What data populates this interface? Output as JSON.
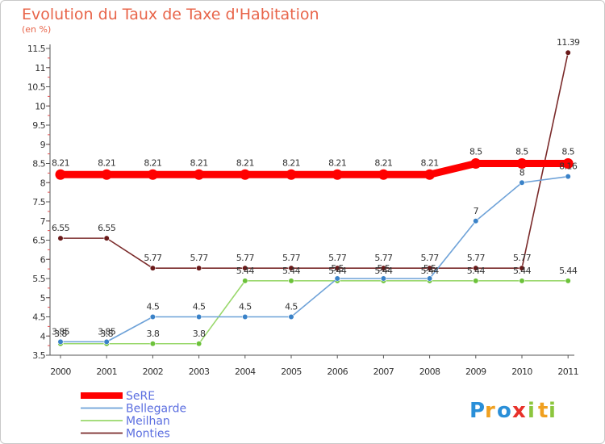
{
  "chart_data": {
    "type": "line",
    "title": "Evolution du Taux de Taxe d'Habitation",
    "ylabel": "(en %)",
    "xlabel": "",
    "x": [
      "2000",
      "2001",
      "2002",
      "2003",
      "2004",
      "2005",
      "2006",
      "2007",
      "2008",
      "2009",
      "2010",
      "2011"
    ],
    "yticks": [
      "3.5",
      "4",
      "4.5",
      "5",
      "5.5",
      "6",
      "6.5",
      "7",
      "7.5",
      "8",
      "8.5",
      "9",
      "9.5",
      "10",
      "10.5",
      "11",
      "11.5"
    ],
    "ylim": [
      3.5,
      11.5
    ],
    "grid": false,
    "legend_position": "bottom-left",
    "series": [
      {
        "name": "SeRE",
        "color": "#ff0000",
        "values": [
          8.21,
          8.21,
          8.21,
          8.21,
          8.21,
          8.21,
          8.21,
          8.21,
          8.21,
          8.5,
          8.5,
          8.5
        ],
        "labels": [
          "8.21",
          "8.21",
          "8.21",
          "8.21",
          "8.21",
          "8.21",
          "8.21",
          "8.21",
          "8.21",
          "8.5",
          "8.5",
          "8.5"
        ]
      },
      {
        "name": "Bellegarde",
        "color": "#6ea2d8",
        "marker": "#3a82c8",
        "values": [
          3.85,
          3.85,
          4.5,
          4.5,
          4.5,
          4.5,
          5.5,
          5.5,
          5.5,
          7,
          8,
          8.16
        ],
        "labels": [
          "3.85",
          "3.85",
          "4.5",
          "4.5",
          "4.5",
          "4.5",
          "5.5",
          "5.5",
          "5.5",
          "7",
          "8",
          "8.16"
        ]
      },
      {
        "name": "Meilhan",
        "color": "#9ad86c",
        "marker": "#6cc23a",
        "values": [
          3.8,
          3.8,
          3.8,
          3.8,
          5.44,
          5.44,
          5.44,
          5.44,
          5.44,
          5.44,
          5.44,
          5.44
        ],
        "labels": [
          "3.8",
          "3.8",
          "3.8",
          "3.8",
          "5.44",
          "5.44",
          "5.44",
          "5.44",
          "5.44",
          "5.44",
          "5.44",
          "5.44"
        ]
      },
      {
        "name": "Monties",
        "color": "#7a2a2a",
        "marker": "#6a1a1a",
        "values": [
          6.55,
          6.55,
          5.77,
          5.77,
          5.77,
          5.77,
          5.77,
          5.77,
          5.77,
          5.77,
          5.77,
          11.39
        ],
        "labels": [
          "6.55",
          "6.55",
          "5.77",
          "5.77",
          "5.77",
          "5.77",
          "5.77",
          "5.77",
          "5.77",
          "5.77",
          "5.77",
          "11.39"
        ]
      }
    ]
  },
  "brand": {
    "letters": [
      "P",
      "r",
      "o",
      "x",
      "i",
      "t",
      "i"
    ],
    "colors": [
      "#2a8fd8",
      "#f0a020",
      "#2a8fd8",
      "#e8312a",
      "#8cc63e",
      "#f0a020",
      "#8cc63e"
    ]
  }
}
